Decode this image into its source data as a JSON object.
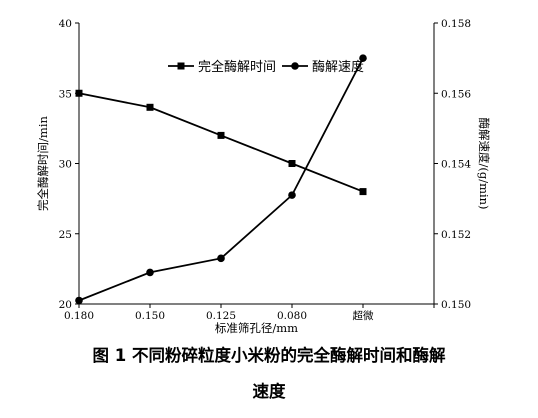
{
  "chart_data": {
    "type": "line",
    "xlabel": "标准筛孔径/mm",
    "categories": [
      "0.180",
      "0.150",
      "0.125",
      "0.080",
      "超微"
    ],
    "y_left": {
      "label": "完全酶解时间/min",
      "range": [
        20,
        40
      ],
      "ticks": [
        "20",
        "25",
        "30",
        "35",
        "40"
      ]
    },
    "y_right": {
      "label": "酶解速度/(g/min)",
      "range": [
        0.15,
        0.158
      ],
      "ticks": [
        "0.150",
        "0.152",
        "0.154",
        "0.156",
        "0.158"
      ]
    },
    "series": [
      {
        "name": "完全酶解时间",
        "axis": "left",
        "marker": "square",
        "values": [
          35,
          34,
          32,
          30,
          28
        ]
      },
      {
        "name": "酶解速度",
        "axis": "right",
        "marker": "circle",
        "values": [
          0.1501,
          0.1509,
          0.1513,
          0.1531,
          0.157
        ]
      }
    ],
    "legend_position": "top-center",
    "grid": false
  },
  "caption": {
    "line1": "图 1  不同粉碎粒度小米粉的完全酶解时间和酶解",
    "line2": "速度"
  }
}
